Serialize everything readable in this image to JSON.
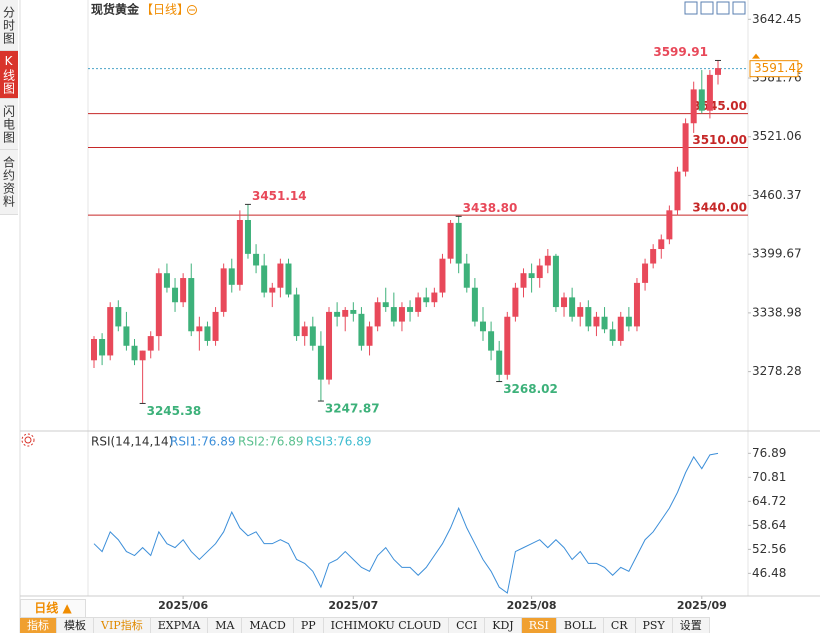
{
  "chart_data": [
    {
      "type": "candlestick",
      "title": "现货黄金",
      "period": "【日线】",
      "open": [
        3290,
        3312,
        3295,
        3345,
        3325,
        3305,
        3290,
        3300,
        3315,
        3380,
        3365,
        3350,
        3375,
        3320,
        3325,
        3310,
        3340,
        3385,
        3368,
        3435,
        3400,
        3388,
        3360,
        3365,
        3390,
        3358,
        3315,
        3325,
        3305,
        3270,
        3340,
        3335,
        3342,
        3338,
        3305,
        3325,
        3350,
        3345,
        3330,
        3345,
        3340,
        3355,
        3350,
        3360,
        3395,
        3432,
        3390,
        3365,
        3330,
        3320,
        3300,
        3275,
        3335,
        3365,
        3380,
        3375,
        3388,
        3398,
        3345,
        3355,
        3335,
        3345,
        3325,
        3335,
        3322,
        3310,
        3335,
        3325,
        3370,
        3390,
        3405,
        3415,
        3445,
        3485,
        3535,
        3570,
        3548,
        3585
      ],
      "high": [
        3315,
        3318,
        3350,
        3352,
        3340,
        3312,
        3300,
        3320,
        3385,
        3390,
        3375,
        3380,
        3390,
        3335,
        3330,
        3345,
        3390,
        3395,
        3445,
        3451.14,
        3410,
        3400,
        3370,
        3395,
        3395,
        3365,
        3330,
        3335,
        3320,
        3345,
        3350,
        3345,
        3350,
        3345,
        3330,
        3355,
        3365,
        3360,
        3350,
        3352,
        3360,
        3365,
        3365,
        3400,
        3435,
        3438.8,
        3400,
        3375,
        3345,
        3330,
        3310,
        3340,
        3370,
        3385,
        3390,
        3395,
        3405,
        3400,
        3360,
        3365,
        3350,
        3352,
        3340,
        3345,
        3330,
        3340,
        3345,
        3375,
        3395,
        3410,
        3420,
        3450,
        3490,
        3540,
        3578,
        3590,
        3590,
        3599.91
      ],
      "low": [
        3282,
        3285,
        3290,
        3320,
        3300,
        3285,
        3245.38,
        3292,
        3300,
        3360,
        3340,
        3345,
        3315,
        3300,
        3305,
        3305,
        3335,
        3360,
        3362,
        3395,
        3380,
        3355,
        3345,
        3355,
        3355,
        3310,
        3305,
        3300,
        3247.87,
        3265,
        3325,
        3320,
        3330,
        3300,
        3295,
        3320,
        3340,
        3325,
        3320,
        3330,
        3335,
        3345,
        3345,
        3355,
        3390,
        3380,
        3360,
        3325,
        3310,
        3290,
        3268.02,
        3270,
        3330,
        3355,
        3360,
        3365,
        3380,
        3340,
        3335,
        3330,
        3325,
        3320,
        3315,
        3318,
        3305,
        3305,
        3320,
        3320,
        3362,
        3385,
        3395,
        3410,
        3440,
        3480,
        3525,
        3545,
        3540,
        3575
      ],
      "close": [
        3312,
        3295,
        3345,
        3325,
        3305,
        3290,
        3300,
        3315,
        3380,
        3365,
        3350,
        3375,
        3320,
        3325,
        3310,
        3340,
        3385,
        3368,
        3435,
        3400,
        3388,
        3360,
        3365,
        3390,
        3358,
        3315,
        3325,
        3305,
        3270,
        3340,
        3335,
        3342,
        3338,
        3305,
        3325,
        3350,
        3345,
        3330,
        3345,
        3340,
        3355,
        3350,
        3360,
        3395,
        3432,
        3390,
        3365,
        3330,
        3320,
        3300,
        3275,
        3335,
        3365,
        3380,
        3375,
        3388,
        3398,
        3345,
        3355,
        3335,
        3345,
        3325,
        3335,
        3322,
        3310,
        3335,
        3325,
        3370,
        3390,
        3405,
        3415,
        3445,
        3485,
        3535,
        3570,
        3548,
        3585,
        3592
      ],
      "up_color": "#e8495a",
      "down_color": "#3db17a",
      "ylim": [
        3220,
        3650
      ],
      "yticks": [
        3642.45,
        3581.76,
        3521.06,
        3460.37,
        3399.67,
        3338.98,
        3278.28
      ],
      "xticks": [
        {
          "value": 11,
          "label": "2025/06"
        },
        {
          "value": 32,
          "label": "2025/07"
        },
        {
          "value": 54,
          "label": "2025/08"
        },
        {
          "value": 75,
          "label": "2025/09"
        }
      ],
      "hlines": [
        {
          "value": 3545,
          "label": "3545.00"
        },
        {
          "value": 3510,
          "label": "3510.00"
        },
        {
          "value": 3440,
          "label": "3440.00"
        }
      ],
      "hline_color": "#c62828",
      "last": {
        "value": 3591.42,
        "color": "#f08c00"
      },
      "annotations": [
        {
          "value": 3599.91
        },
        {
          "value": 3451.14
        },
        {
          "value": 3438.8,
          "label": "3438.80"
        },
        {
          "value": 3245.38
        },
        {
          "value": 3247.87
        },
        {
          "value": 3268.02
        }
      ]
    },
    {
      "type": "line",
      "title": "RSI(14,14,14)",
      "legend": [
        {
          "name": "RSI1:76.89",
          "color": "#3d8fd9"
        },
        {
          "name": "RSI2:76.89",
          "color": "#5cc08f"
        },
        {
          "name": "RSI3:76.89",
          "color": "#3fbcd0"
        }
      ],
      "color": "#3d8fd9",
      "values": [
        54,
        52,
        57,
        55,
        52,
        51,
        53,
        51,
        57,
        54,
        53,
        55,
        52,
        50,
        52,
        54,
        57,
        62,
        58,
        56,
        57,
        54,
        54,
        55,
        54,
        50,
        49,
        47,
        43,
        49,
        50,
        52,
        50,
        48,
        47,
        51,
        53,
        50,
        48,
        48,
        46,
        48,
        51,
        54,
        58,
        63,
        58,
        54,
        50,
        47,
        43,
        41.5,
        52,
        53,
        54,
        55,
        53,
        55,
        53,
        50,
        52,
        49,
        49,
        48,
        46,
        48,
        47,
        51,
        55,
        57,
        60,
        63,
        67,
        72,
        76,
        73,
        76.5,
        76.89
      ],
      "ylim": [
        41,
        79
      ],
      "yticks": [
        76.89,
        70.81,
        64.72,
        58.64,
        52.56,
        46.48
      ]
    }
  ],
  "ui": {
    "sidebar": [
      "分时图",
      "K线图",
      "闪电图",
      "合约资料"
    ],
    "period_button": "日线 ▲",
    "tabs": [
      "指标",
      "模板",
      "VIP指标",
      "EXPMA",
      "MA",
      "MACD",
      "PP",
      "ICHIMOKU CLOUD",
      "CCI",
      "KDJ",
      "RSI",
      "BOLL",
      "CR",
      "PSY",
      "设置"
    ]
  }
}
